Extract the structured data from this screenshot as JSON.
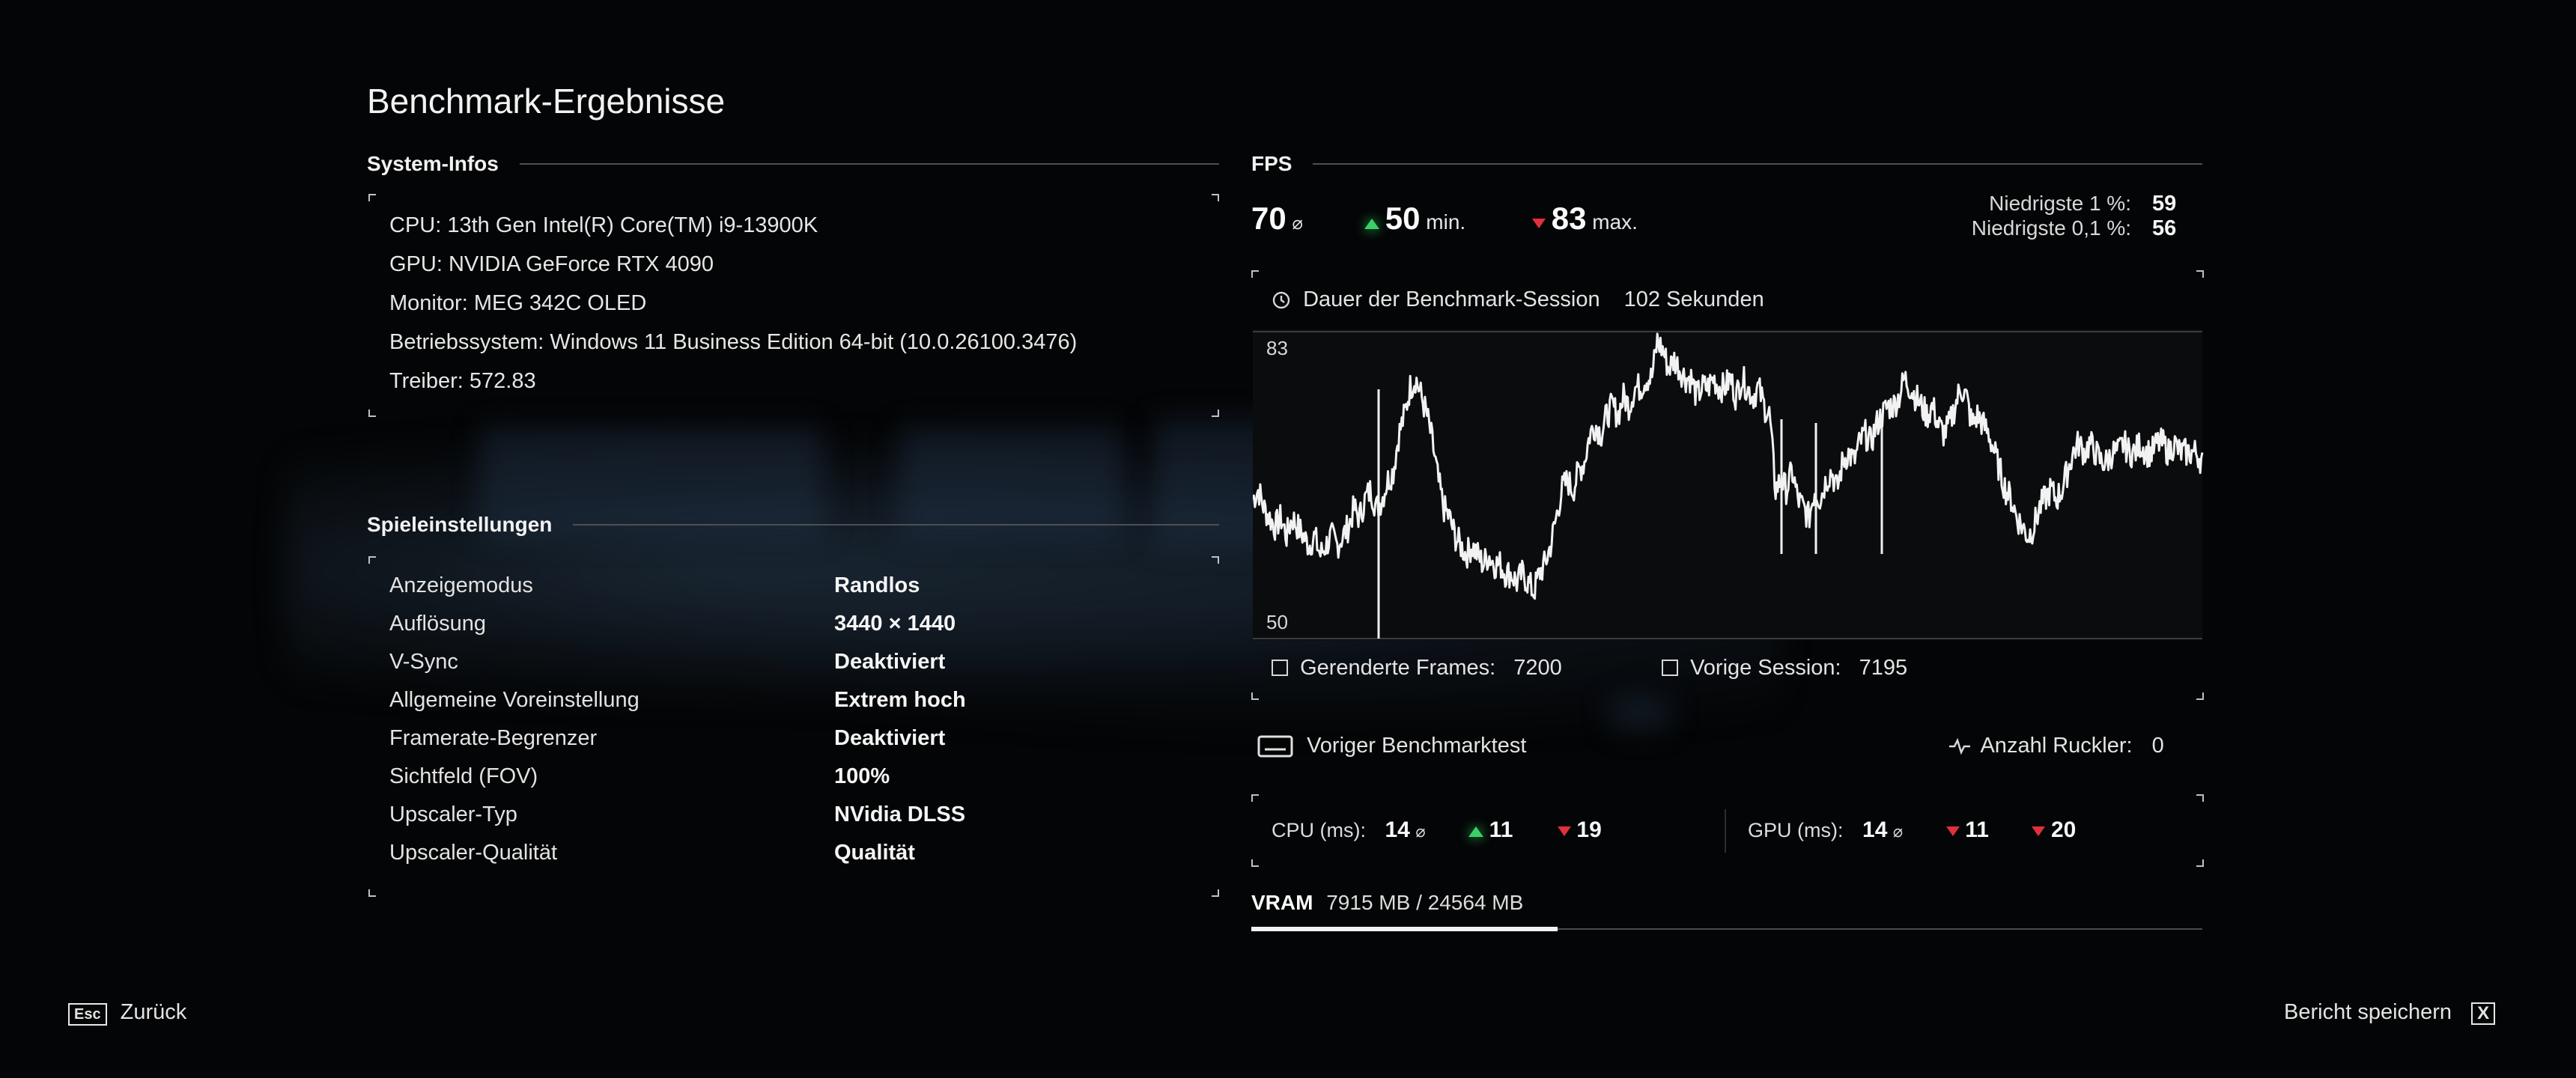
{
  "page": {
    "title": "Benchmark-Ergebnisse"
  },
  "system": {
    "heading": "System-Infos",
    "lines": [
      "CPU: 13th Gen Intel(R) Core(TM) i9-13900K",
      "GPU: NVIDIA GeForce RTX 4090",
      "Monitor: MEG 342C OLED",
      "Betriebssystem: Windows 11 Business Edition 64-bit (10.0.26100.3476)",
      "Treiber: 572.83"
    ]
  },
  "settings": {
    "heading": "Spieleinstellungen",
    "rows": [
      {
        "label": "Anzeigemodus",
        "value": "Randlos"
      },
      {
        "label": "Auflösung",
        "value": "3440 × 1440"
      },
      {
        "label": "V-Sync",
        "value": "Deaktiviert"
      },
      {
        "label": "Allgemeine Voreinstellung",
        "value": "Extrem hoch"
      },
      {
        "label": "Framerate-Begrenzer",
        "value": "Deaktiviert"
      },
      {
        "label": "Sichtfeld (FOV)",
        "value": "100%"
      },
      {
        "label": "Upscaler-Typ",
        "value": "NVidia DLSS"
      },
      {
        "label": "Upscaler-Qualität",
        "value": "Qualität"
      }
    ]
  },
  "fps": {
    "heading": "FPS",
    "avg": "70",
    "avg_suffix": "⌀",
    "min": "50",
    "min_suffix": "min.",
    "max": "83",
    "max_suffix": "max.",
    "low1_label": "Niedrigste 1 %:",
    "low1_value": "59",
    "low01_label": "Niedrigste 0,1 %:",
    "low01_value": "56",
    "duration_label": "Dauer der Benchmark-Session",
    "duration_value": "102 Sekunden",
    "rendered_label": "Gerenderte Frames:",
    "rendered_value": "7200",
    "previous_label": "Vorige Session:",
    "previous_value": "7195",
    "prev_test_label": "Voriger Benchmarktest",
    "stutter_label": "Anzahl Ruckler:",
    "stutter_value": "0"
  },
  "chart_data": {
    "type": "line",
    "ylim": [
      50,
      83
    ],
    "ytick_labels": [
      "83",
      "50"
    ],
    "y_samples": [
      65,
      66,
      64,
      63,
      62,
      63,
      61,
      63,
      62,
      61,
      60,
      61,
      59,
      60,
      61,
      60,
      61,
      62,
      64,
      63,
      65,
      66,
      64,
      65,
      67,
      68,
      72,
      74,
      77,
      78,
      76,
      74,
      71,
      67,
      64,
      63,
      61,
      60,
      59,
      60,
      59,
      58,
      59,
      58,
      58,
      57,
      57,
      56,
      57,
      56,
      55,
      57,
      58,
      60,
      63,
      66,
      67,
      66,
      68,
      69,
      72,
      73,
      72,
      74,
      75,
      74,
      76,
      75,
      77,
      77,
      78,
      78,
      82,
      81,
      79,
      80,
      79,
      78,
      78,
      76,
      77,
      77,
      78,
      77,
      77,
      78,
      76,
      78,
      77,
      76,
      77,
      75,
      74,
      66,
      67,
      66,
      68,
      65,
      64,
      63,
      66,
      65,
      67,
      68,
      66,
      69,
      70,
      69,
      71,
      72,
      71,
      73,
      74,
      75,
      75,
      76,
      78,
      77,
      76,
      75,
      74,
      75,
      73,
      72,
      73,
      75,
      77,
      76,
      73,
      74,
      73,
      72,
      70,
      68,
      66,
      65,
      63,
      62,
      61,
      62,
      64,
      65,
      66,
      65,
      66,
      68,
      70,
      71,
      70,
      71,
      70,
      69,
      69,
      70,
      70,
      71,
      70,
      70,
      71,
      70,
      70,
      71,
      71,
      70,
      71,
      70,
      70,
      70,
      70,
      69
    ]
  },
  "timing": {
    "cpu_label": "CPU (ms):",
    "cpu_avg": "14",
    "cpu_min": "11",
    "cpu_max": "19",
    "gpu_label": "GPU (ms):",
    "gpu_avg": "14",
    "gpu_min": "11",
    "gpu_max": "20",
    "avg_suffix": "⌀"
  },
  "vram": {
    "label": "VRAM",
    "value": "7915 MB / 24564 MB",
    "usage_fraction": 0.322
  },
  "footer": {
    "back_key": "Esc",
    "back_label": "Zurück",
    "save_label": "Bericht speichern",
    "save_key": "X"
  },
  "colors": {
    "accent_up": "#39d06a",
    "accent_down": "#e0303a",
    "background": "#040506"
  }
}
